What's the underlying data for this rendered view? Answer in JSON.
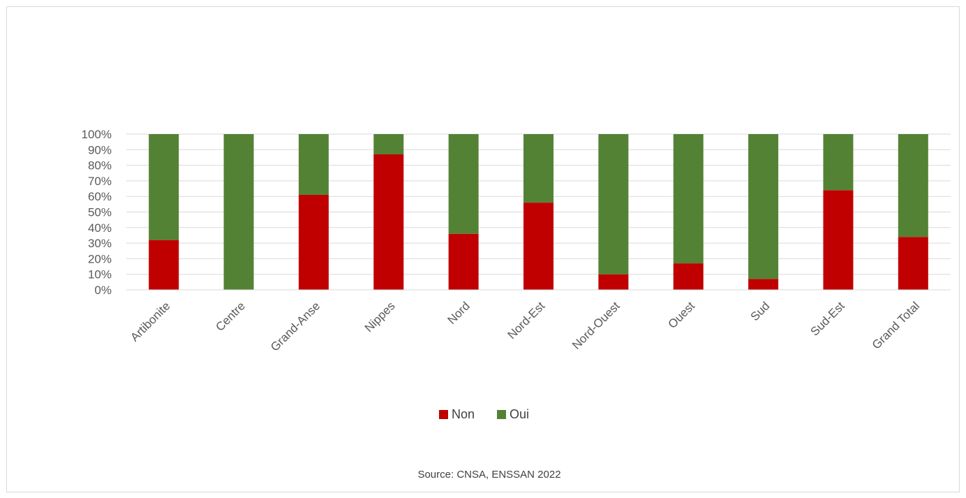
{
  "chart_data": {
    "type": "bar",
    "stacked": true,
    "percent": true,
    "categories": [
      "Artibonite",
      "Centre",
      "Grand-Anse",
      "Nippes",
      "Nord",
      "Nord-Est",
      "Nord-Ouest",
      "Ouest",
      "Sud",
      "Sud-Est",
      "Grand Total"
    ],
    "series": [
      {
        "name": "Non",
        "color": "#c00000",
        "values": [
          32,
          0,
          61,
          87,
          36,
          56,
          10,
          17,
          7,
          64,
          34
        ]
      },
      {
        "name": "Oui",
        "color": "#548235",
        "values": [
          68,
          100,
          39,
          13,
          64,
          44,
          90,
          83,
          93,
          36,
          66
        ]
      }
    ],
    "ylim": [
      0,
      100
    ],
    "yticks": [
      "0%",
      "10%",
      "20%",
      "30%",
      "40%",
      "50%",
      "60%",
      "70%",
      "80%",
      "90%",
      "100%"
    ],
    "title": "",
    "xlabel": "",
    "ylabel": "",
    "grid": true,
    "legend_position": "bottom",
    "source": "Source: CNSA, ENSSAN 2022"
  }
}
